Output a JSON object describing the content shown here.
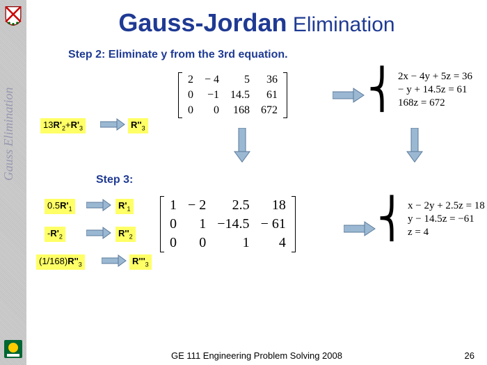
{
  "title": {
    "part1": "Gauss-Jordan",
    "part2": " Elimination"
  },
  "sidebar_text": "Gauss Elimination",
  "step2_label": "Step 2: Eliminate y from the 3rd equation.",
  "step3_label": "Step 3:",
  "row_ops": {
    "op1": {
      "pre": "13",
      "r1": "R'",
      "s1": "2",
      "mid": "+",
      "r2": "R'",
      "s2": "3"
    },
    "op1_out": {
      "r": "R''",
      "s": "3"
    },
    "op2": {
      "pre": "0.5",
      "r": "R'",
      "s": "1"
    },
    "op2_out": {
      "r": "R'",
      "s": "1"
    },
    "op3": {
      "pre": "-",
      "r": "R'",
      "s": "2"
    },
    "op3_out": {
      "r": "R''",
      "s": "2"
    },
    "op4": {
      "pre": "(1/168)",
      "r": "R''",
      "s": "3"
    },
    "op4_out": {
      "r": "R'''",
      "s": "3"
    }
  },
  "matrix1": [
    [
      "2",
      "− 4",
      "5",
      "36"
    ],
    [
      "0",
      "−1",
      "14.5",
      "61"
    ],
    [
      "0",
      "0",
      "168",
      "672"
    ]
  ],
  "eqs1": [
    "2x − 4y + 5z = 36",
    "− y + 14.5z = 61",
    "168z = 672"
  ],
  "matrix2": [
    [
      "1",
      "− 2",
      "2.5",
      "18"
    ],
    [
      "0",
      "1",
      "−14.5",
      "− 61"
    ],
    [
      "0",
      "0",
      "1",
      "4"
    ]
  ],
  "eqs2": [
    "x − 2y + 2.5z = 18",
    "y − 14.5z = −61",
    "z = 4"
  ],
  "footer": "GE 111 Engineering Problem Solving 2008",
  "page": "26",
  "colors": {
    "title": "#1f3a93",
    "highlight": "#ffff66",
    "arrow_fill": "#9bb8d3",
    "arrow_stroke": "#5a7a9a"
  }
}
